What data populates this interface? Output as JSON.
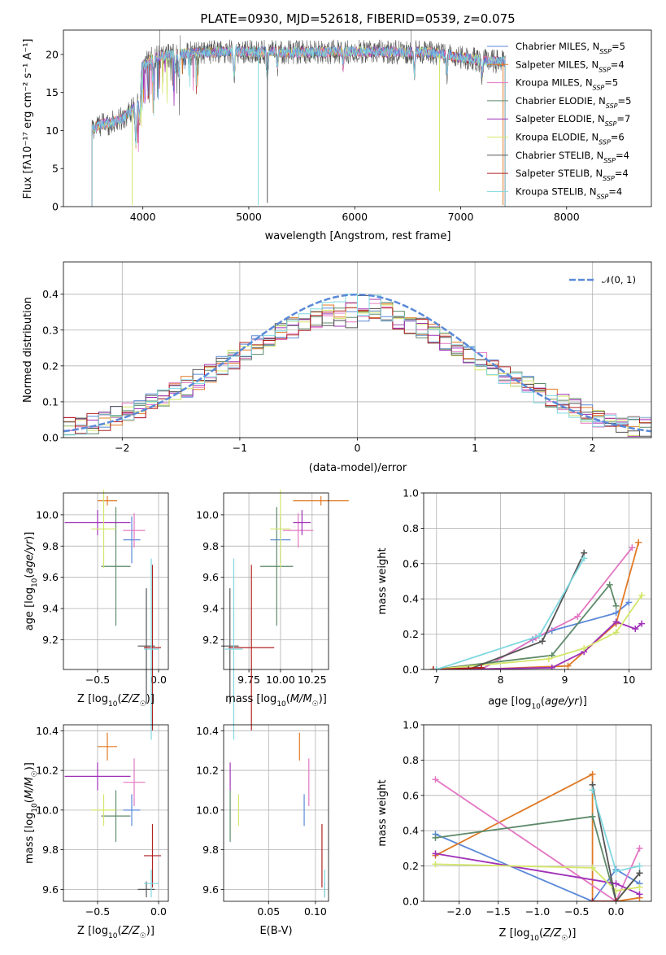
{
  "figure_title": "PLATE=0930, MJD=52618, FIBERID=0539, z=0.075",
  "colors": {
    "chabrier_miles": "#5b8ad8",
    "salpeter_miles": "#e07b27",
    "kroupa_miles": "#e377c2",
    "chabrier_elodie": "#5e8a6a",
    "salpeter_elodie": "#a030b8",
    "kroupa_elodie": "#d4e66a",
    "chabrier_stelib": "#555555",
    "salpeter_stelib": "#b22222",
    "kroupa_stelib": "#7fd8e0"
  },
  "chart_data": [
    {
      "type": "line",
      "title": "PLATE=0930, MJD=52618, FIBERID=0539, z=0.075",
      "xlabel": "wavelength [Angstrom, rest frame]",
      "ylabel": "Flux [fλ10⁻¹⁷ erg cm⁻² s⁻¹ A⁻¹]",
      "xlim": [
        3250,
        8800
      ],
      "ylim": [
        0,
        23.2
      ],
      "xticks": [
        "4000",
        "5000",
        "6000",
        "7000",
        "8000"
      ],
      "yticks": [
        "0",
        "5",
        "10",
        "15",
        "20"
      ],
      "legend_position": "top-right",
      "legend": [
        {
          "name": "Chabrier MILES, N_SSP=5",
          "prefix": "Chabrier MILES, N",
          "sub": "SSP",
          "suffix": "=5"
        },
        {
          "name": "Salpeter MILES, N_SSP=4",
          "prefix": "Salpeter MILES, N",
          "sub": "SSP",
          "suffix": "=4"
        },
        {
          "name": "Kroupa MILES, N_SSP=5",
          "prefix": "Kroupa MILES, N",
          "sub": "SSP",
          "suffix": "=5"
        },
        {
          "name": "Chabrier ELODIE, N_SSP=5",
          "prefix": "Chabrier ELODIE, N",
          "sub": "SSP",
          "suffix": "=5"
        },
        {
          "name": "Salpeter ELODIE, N_SSP=7",
          "prefix": "Salpeter ELODIE, N",
          "sub": "SSP",
          "suffix": "=7"
        },
        {
          "name": "Kroupa ELODIE, N_SSP=6",
          "prefix": "Kroupa ELODIE, N",
          "sub": "SSP",
          "suffix": "=6"
        },
        {
          "name": "Chabrier STELIB, N_SSP=4",
          "prefix": "Chabrier STELIB, N",
          "sub": "SSP",
          "suffix": "=4"
        },
        {
          "name": "Salpeter STELIB, N_SSP=4",
          "prefix": "Salpeter STELIB, N",
          "sub": "SSP",
          "suffix": "=4"
        },
        {
          "name": "Kroupa STELIB, N_SSP=4",
          "prefix": "Kroupa STELIB, N",
          "sub": "SSP",
          "suffix": "=4"
        }
      ],
      "continuum": [
        [
          3520,
          10.2
        ],
        [
          3600,
          10.8
        ],
        [
          3700,
          11.0
        ],
        [
          3800,
          11.5
        ],
        [
          3900,
          12.8
        ],
        [
          3950,
          13.5
        ],
        [
          4000,
          18.5
        ],
        [
          4100,
          19.6
        ],
        [
          4300,
          20.0
        ],
        [
          4500,
          20.2
        ],
        [
          4800,
          20.4
        ],
        [
          5200,
          20.3
        ],
        [
          5600,
          20.3
        ],
        [
          6000,
          20.4
        ],
        [
          6300,
          20.3
        ],
        [
          6700,
          20.3
        ],
        [
          7000,
          19.6
        ],
        [
          7200,
          19.2
        ],
        [
          7420,
          19.0
        ]
      ],
      "absorption_features": [
        [
          3934,
          5.0
        ],
        [
          3969,
          4.5
        ],
        [
          4102,
          3.0
        ],
        [
          4304,
          2.5
        ],
        [
          4340,
          3.0
        ],
        [
          4861,
          3.5
        ],
        [
          5175,
          3.5
        ],
        [
          5270,
          2.0
        ],
        [
          5890,
          2.0
        ],
        [
          6563,
          3.0
        ],
        [
          6870,
          2.5
        ],
        [
          7200,
          2.0
        ]
      ],
      "deep_dips": [
        [
          3900,
          0.2
        ],
        [
          5090,
          0.2
        ],
        [
          5175,
          0.5
        ],
        [
          6800,
          2.0
        ],
        [
          7400,
          0.2
        ]
      ]
    },
    {
      "type": "histogram",
      "xlabel": "(data-model)/error",
      "ylabel": "Normed distribution",
      "xlim": [
        -2.5,
        2.5
      ],
      "ylim": [
        0,
        0.49
      ],
      "xticks": [
        "−2",
        "−1",
        "0",
        "1",
        "2"
      ],
      "yticks": [
        "0.0",
        "0.1",
        "0.2",
        "0.3",
        "0.4"
      ],
      "bin_width": 0.1,
      "grid": true,
      "legend_position": "top-right",
      "reference_curve": {
        "name": "𝒩(0, 1)",
        "type": "gaussian",
        "mean": 0,
        "sigma": 1
      }
    },
    {
      "type": "scatter_errorbars",
      "xlabel": "Z [log10(Z/Z☉)]",
      "ylabel": "age [log10(age/yr)]",
      "xlim": [
        -0.78,
        0.08
      ],
      "ylim": [
        9.01,
        10.14
      ],
      "xticks": [
        "−0.5",
        "0.0"
      ],
      "yticks": [
        "9.2",
        "9.4",
        "9.6",
        "9.8",
        "10.0"
      ],
      "grid": true,
      "points": [
        {
          "model": "chabrier_miles",
          "x": -0.22,
          "y": 9.84,
          "xerr": 0.07,
          "yerr": 0.15
        },
        {
          "model": "salpeter_miles",
          "x": -0.42,
          "y": 10.09,
          "xerr": 0.08,
          "yerr": 0.03
        },
        {
          "model": "kroupa_miles",
          "x": -0.2,
          "y": 9.9,
          "xerr": 0.09,
          "yerr": 0.11
        },
        {
          "model": "chabrier_elodie",
          "x": -0.35,
          "y": 9.67,
          "xerr": 0.12,
          "yerr": 0.38
        },
        {
          "model": "salpeter_elodie",
          "x": -0.5,
          "y": 9.95,
          "xerr": 0.27,
          "yerr": 0.08
        },
        {
          "model": "kroupa_elodie",
          "x": -0.45,
          "y": 9.91,
          "xerr": 0.1,
          "yerr": 0.25
        },
        {
          "model": "chabrier_stelib",
          "x": -0.1,
          "y": 9.16,
          "xerr": 0.07,
          "yerr": 0.37
        },
        {
          "model": "salpeter_stelib",
          "x": -0.05,
          "y": 9.15,
          "xerr": 0.07,
          "yerr": 0.53
        },
        {
          "model": "kroupa_stelib",
          "x": -0.06,
          "y": 9.14,
          "xerr": 0.06,
          "yerr": 0.58
        }
      ]
    },
    {
      "type": "scatter_errorbars",
      "xlabel": "mass [log10(M/M☉)]",
      "ylabel": "",
      "xlim": [
        9.55,
        10.38
      ],
      "ylim": [
        9.01,
        10.14
      ],
      "xticks": [
        "9.75",
        "10.00",
        "10.25"
      ],
      "yticks": [
        "9.2",
        "9.4",
        "9.6",
        "9.8",
        "10.0"
      ],
      "grid": true,
      "points": [
        {
          "model": "chabrier_miles",
          "x": 10.0,
          "y": 9.84,
          "xerr": 0.08,
          "yerr": 0.15
        },
        {
          "model": "salpeter_miles",
          "x": 10.32,
          "y": 10.09,
          "xerr": 0.22,
          "yerr": 0.03
        },
        {
          "model": "kroupa_miles",
          "x": 10.14,
          "y": 9.9,
          "xerr": 0.12,
          "yerr": 0.11
        },
        {
          "model": "chabrier_elodie",
          "x": 9.97,
          "y": 9.67,
          "xerr": 0.13,
          "yerr": 0.38
        },
        {
          "model": "salpeter_elodie",
          "x": 10.17,
          "y": 9.95,
          "xerr": 0.07,
          "yerr": 0.08
        },
        {
          "model": "kroupa_elodie",
          "x": 10.0,
          "y": 9.91,
          "xerr": 0.08,
          "yerr": 0.25
        },
        {
          "model": "chabrier_stelib",
          "x": 9.6,
          "y": 9.16,
          "xerr": 0.07,
          "yerr": 0.37
        },
        {
          "model": "salpeter_stelib",
          "x": 9.77,
          "y": 9.15,
          "xerr": 0.18,
          "yerr": 0.53
        },
        {
          "model": "kroupa_stelib",
          "x": 9.63,
          "y": 9.14,
          "xerr": 0.07,
          "yerr": 0.58
        }
      ]
    },
    {
      "type": "line",
      "xlabel": "age [log10(age/yr)]",
      "ylabel": "mass weight",
      "xlim": [
        6.8,
        10.35
      ],
      "ylim": [
        0,
        1.0
      ],
      "xticks": [
        "7",
        "8",
        "9",
        "10"
      ],
      "yticks": [
        "0.0",
        "0.2",
        "0.4",
        "0.6",
        "0.8",
        "1.0"
      ],
      "grid": true,
      "series": [
        {
          "model": "chabrier_miles",
          "x": [
            7.7,
            8.5,
            8.8,
            9.8,
            10.0
          ],
          "y": [
            0.0,
            0.17,
            0.22,
            0.32,
            0.38
          ]
        },
        {
          "model": "salpeter_miles",
          "x": [
            7.6,
            9.05,
            9.8,
            10.15
          ],
          "y": [
            0.0,
            0.02,
            0.26,
            0.72
          ]
        },
        {
          "model": "kroupa_miles",
          "x": [
            7.7,
            8.55,
            9.2,
            10.05
          ],
          "y": [
            0.0,
            0.18,
            0.3,
            0.69
          ]
        },
        {
          "model": "chabrier_elodie",
          "x": [
            6.95,
            8.8,
            9.7,
            9.8
          ],
          "y": [
            0.0,
            0.08,
            0.48,
            0.36
          ]
        },
        {
          "model": "salpeter_elodie",
          "x": [
            7.3,
            8.8,
            9.3,
            9.8,
            10.1,
            10.2
          ],
          "y": [
            0.0,
            0.01,
            0.1,
            0.27,
            0.23,
            0.26
          ]
        },
        {
          "model": "kroupa_elodie",
          "x": [
            6.95,
            8.75,
            9.3,
            9.8,
            10.2
          ],
          "y": [
            0.0,
            0.06,
            0.12,
            0.21,
            0.42
          ]
        },
        {
          "model": "chabrier_stelib",
          "x": [
            7.5,
            8.65,
            9.3
          ],
          "y": [
            0.0,
            0.16,
            0.66
          ]
        },
        {
          "model": "salpeter_stelib",
          "x": [
            6.95,
            7.7
          ],
          "y": [
            0.0,
            0.01
          ]
        },
        {
          "model": "kroupa_stelib",
          "x": [
            7.0,
            8.6,
            9.3
          ],
          "y": [
            0.0,
            0.19,
            0.63
          ]
        }
      ]
    },
    {
      "type": "scatter_errorbars",
      "xlabel": "Z [log10(Z/Z☉)]",
      "ylabel": "mass [log10(M/M☉)]",
      "xlim": [
        -0.78,
        0.08
      ],
      "ylim": [
        9.54,
        10.43
      ],
      "xticks": [
        "−0.5",
        "0.0"
      ],
      "yticks": [
        "9.6",
        "9.8",
        "10.0",
        "10.2",
        "10.4"
      ],
      "grid": true,
      "points": [
        {
          "model": "chabrier_miles",
          "x": -0.22,
          "y": 10.0,
          "xerr": 0.07,
          "yerr": 0.08
        },
        {
          "model": "salpeter_miles",
          "x": -0.42,
          "y": 10.32,
          "xerr": 0.08,
          "yerr": 0.07
        },
        {
          "model": "kroupa_miles",
          "x": -0.2,
          "y": 10.14,
          "xerr": 0.09,
          "yerr": 0.12
        },
        {
          "model": "chabrier_elodie",
          "x": -0.35,
          "y": 9.97,
          "xerr": 0.12,
          "yerr": 0.13
        },
        {
          "model": "salpeter_elodie",
          "x": -0.5,
          "y": 10.17,
          "xerr": 0.27,
          "yerr": 0.07
        },
        {
          "model": "kroupa_elodie",
          "x": -0.45,
          "y": 10.0,
          "xerr": 0.1,
          "yerr": 0.08
        },
        {
          "model": "chabrier_stelib",
          "x": -0.1,
          "y": 9.6,
          "xerr": 0.07,
          "yerr": 0.04
        },
        {
          "model": "salpeter_stelib",
          "x": -0.05,
          "y": 9.77,
          "xerr": 0.07,
          "yerr": 0.16
        },
        {
          "model": "kroupa_stelib",
          "x": -0.06,
          "y": 9.63,
          "xerr": 0.06,
          "yerr": 0.07
        }
      ]
    },
    {
      "type": "scatter_errorbars",
      "xlabel": "E(B-V)",
      "ylabel": "",
      "xlim": [
        0.002,
        0.114
      ],
      "ylim": [
        9.54,
        10.43
      ],
      "xticks": [
        "0.05",
        "0.10"
      ],
      "yticks": [
        "9.6",
        "9.8",
        "10.0",
        "10.2",
        "10.4"
      ],
      "grid": true,
      "points": [
        {
          "model": "chabrier_miles",
          "x": 0.088,
          "y": 10.0,
          "xerr": 0.0,
          "yerr": 0.08
        },
        {
          "model": "salpeter_miles",
          "x": 0.083,
          "y": 10.32,
          "xerr": 0.0,
          "yerr": 0.07
        },
        {
          "model": "kroupa_miles",
          "x": 0.093,
          "y": 10.14,
          "xerr": 0.0,
          "yerr": 0.12
        },
        {
          "model": "chabrier_elodie",
          "x": 0.009,
          "y": 9.97,
          "xerr": 0.0,
          "yerr": 0.13
        },
        {
          "model": "salpeter_elodie",
          "x": 0.009,
          "y": 10.17,
          "xerr": 0.0,
          "yerr": 0.07
        },
        {
          "model": "kroupa_elodie",
          "x": 0.018,
          "y": 10.0,
          "xerr": 0.0,
          "yerr": 0.08
        },
        {
          "model": "chabrier_stelib",
          "x": 0.11,
          "y": 9.6,
          "xerr": 0.0,
          "yerr": 0.04
        },
        {
          "model": "salpeter_stelib",
          "x": 0.107,
          "y": 9.77,
          "xerr": 0.0,
          "yerr": 0.16
        },
        {
          "model": "kroupa_stelib",
          "x": 0.11,
          "y": 9.63,
          "xerr": 0.0,
          "yerr": 0.07
        }
      ]
    },
    {
      "type": "line",
      "xlabel": "Z [log10(Z/Z☉)]",
      "ylabel": "mass weight",
      "xlim": [
        -2.45,
        0.45
      ],
      "ylim": [
        0,
        1.0
      ],
      "xticks": [
        "−2.0",
        "−1.5",
        "−1.0",
        "−0.5",
        "0.0"
      ],
      "yticks": [
        "0.0",
        "0.2",
        "0.4",
        "0.6",
        "0.8",
        "1.0"
      ],
      "grid": true,
      "series": [
        {
          "model": "chabrier_miles",
          "x": [
            -2.3,
            -0.3,
            0.0,
            0.3
          ],
          "y": [
            0.38,
            0.0,
            0.18,
            0.1
          ]
        },
        {
          "model": "salpeter_miles",
          "x": [
            -2.3,
            -0.3,
            -0.3,
            0.0,
            0.3
          ],
          "y": [
            0.26,
            0.72,
            0.0,
            0.0,
            0.02
          ]
        },
        {
          "model": "kroupa_miles",
          "x": [
            -2.3,
            0.0,
            0.3
          ],
          "y": [
            0.69,
            0.0,
            0.3
          ]
        },
        {
          "model": "chabrier_elodie",
          "x": [
            -2.3,
            -0.3,
            0.0,
            0.3
          ],
          "y": [
            0.36,
            0.48,
            0.0,
            0.16
          ]
        },
        {
          "model": "salpeter_elodie",
          "x": [
            -2.3,
            0.0,
            0.3
          ],
          "y": [
            0.27,
            0.1,
            0.04
          ]
        },
        {
          "model": "kroupa_elodie",
          "x": [
            -2.3,
            -0.3,
            0.0,
            0.3
          ],
          "y": [
            0.21,
            0.19,
            0.06,
            0.08
          ]
        },
        {
          "model": "chabrier_stelib",
          "x": [
            -0.3,
            0.0,
            0.3
          ],
          "y": [
            0.66,
            0.0,
            0.16
          ]
        },
        {
          "model": "salpeter_stelib",
          "x": [
            -0.3,
            0.0
          ],
          "y": [
            0.0,
            0.0
          ]
        },
        {
          "model": "kroupa_stelib",
          "x": [
            -0.3,
            0.0,
            0.3
          ],
          "y": [
            0.63,
            0.17,
            0.2
          ]
        }
      ]
    }
  ]
}
